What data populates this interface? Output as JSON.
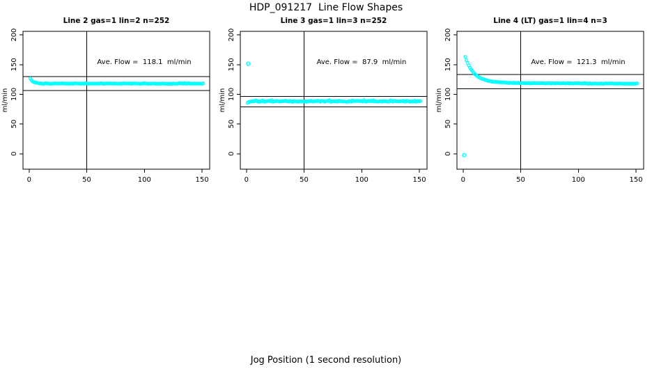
{
  "main_title": "HDP_091217  Line Flow Shapes",
  "x_axis_label": "Jog Position (1 second resolution)",
  "colors": {
    "point": "#00FFFF",
    "axis": "#000000",
    "background": "#FFFFFF"
  },
  "chart_data": {
    "type": "scatter",
    "layout": "1x3-top-row",
    "xlim": [
      -5.3,
      156.6
    ],
    "ylim": [
      -26,
      206
    ],
    "x_ticks": [
      0,
      50,
      100,
      150
    ],
    "y_ticks": [
      0,
      50,
      100,
      150,
      200
    ],
    "y_axis_label": "ml/min",
    "grid": false,
    "point_style": "open-circle",
    "panels": [
      {
        "title": "Line 2 gas=1 lin=2 n=252",
        "annotation": "Ave. Flow =  118.1  ml/min",
        "ave_flow": 118.1,
        "n": 252,
        "ref_lines": {
          "h_upper": 129.9,
          "h_lower": 106.3,
          "v": 50
        },
        "annotation_pos": {
          "x": 100,
          "y": 152
        },
        "series_model": {
          "x_start": 1,
          "x_end": 151,
          "baseline": 118.0,
          "amplitude": 8.8,
          "tau": 2.3,
          "slow_amplitude": 0.4,
          "slow_tau": 40,
          "jitter": 0.5,
          "spike_p": 0.08,
          "spike_amp": 1.2,
          "seed": 101
        },
        "outliers": []
      },
      {
        "title": "Line 3 gas=1 lin=3 n=252",
        "annotation": "Ave. Flow =  87.9  ml/min",
        "ave_flow": 87.9,
        "n": 252,
        "ref_lines": {
          "h_upper": 96.7,
          "h_lower": 79.1,
          "v": 50
        },
        "annotation_pos": {
          "x": 100,
          "y": 152
        },
        "series_model": {
          "x_start": 1,
          "x_end": 151,
          "baseline": 88.2,
          "amplitude": -1.8,
          "tau": 1.2,
          "slow_amplitude": 0,
          "slow_tau": 1,
          "jitter": 0.8,
          "spike_p": 0.2,
          "spike_amp": 1.8,
          "seed": 202
        },
        "outliers": [
          {
            "x": 1.5,
            "y": 151.5
          }
        ]
      },
      {
        "title": "Line 4 (LT) gas=1 lin=4 n=3",
        "annotation": "Ave. Flow =  121.3  ml/min",
        "ave_flow": 121.3,
        "n": 3,
        "ref_lines": {
          "h_upper": 133.4,
          "h_lower": 109.2,
          "v": 50
        },
        "annotation_pos": {
          "x": 100,
          "y": 152
        },
        "series_model": {
          "x_start": 2,
          "x_end": 151,
          "baseline": 117.9,
          "amplitude": 42,
          "tau": 7.5,
          "slow_amplitude": 2.8,
          "slow_tau": 50,
          "jitter": 0.45,
          "spike_p": 0.05,
          "spike_amp": 1.0,
          "seed": 303
        },
        "outliers": [
          {
            "x": 1,
            "y": -2.5
          }
        ]
      }
    ]
  }
}
